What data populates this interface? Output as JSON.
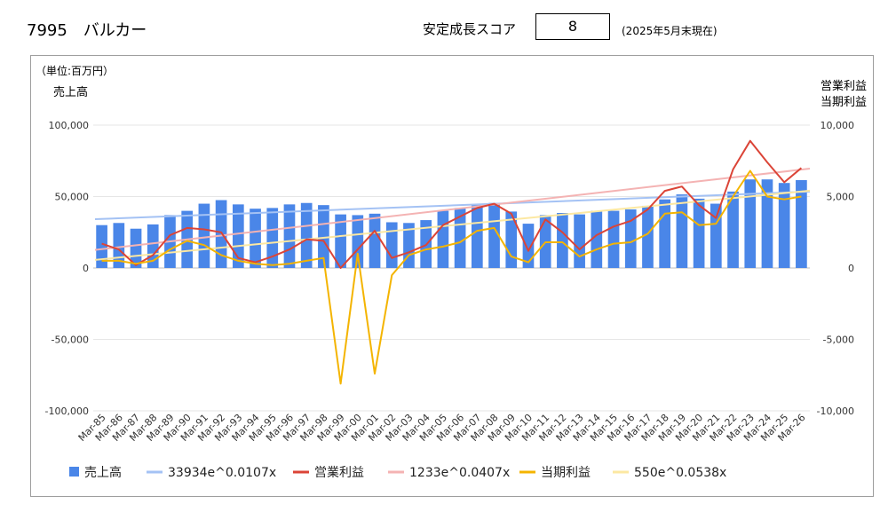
{
  "header": {
    "title": "7995　バルカー",
    "score_label": "安定成長スコア",
    "score_value": "8",
    "note": "(2025年5月末現在)"
  },
  "chart_data": {
    "type": "bar",
    "unit_label": "（単位:百万円）",
    "left_axis_label": "売上高",
    "right_axis_label_1": "営業利益",
    "right_axis_label_2": "当期利益",
    "categories": [
      "Mar-85",
      "Mar-86",
      "Mar-87",
      "Mar-88",
      "Mar-89",
      "Mar-90",
      "Mar-91",
      "Mar-92",
      "Mar-93",
      "Mar-94",
      "Mar-95",
      "Mar-96",
      "Mar-97",
      "Mar-98",
      "Mar-99",
      "Mar-00",
      "Mar-01",
      "Mar-02",
      "Mar-03",
      "Mar-04",
      "Mar-05",
      "Mar-06",
      "Mar-07",
      "Mar-08",
      "Mar-09",
      "Mar-10",
      "Mar-11",
      "Mar-12",
      "Mar-13",
      "Mar-14",
      "Mar-15",
      "Mar-16",
      "Mar-17",
      "Mar-18",
      "Mar-19",
      "Mar-20",
      "Mar-21",
      "Mar-22",
      "Mar-23",
      "Mar-24",
      "Mar-25",
      "Mar-26"
    ],
    "y_left": {
      "min": -100000,
      "max": 100000,
      "ticks": [
        100000,
        50000,
        0,
        -50000,
        -100000
      ],
      "tick_labels": [
        "100,000",
        "50,000",
        "0",
        "-50,000",
        "-100,000"
      ]
    },
    "y_right": {
      "min": -10000,
      "max": 10000,
      "ticks": [
        10000,
        5000,
        0,
        -5000,
        -10000
      ],
      "tick_labels": [
        "10,000",
        "5,000",
        "0",
        "-5,000",
        "-10,000"
      ]
    },
    "series": [
      {
        "name": "売上高",
        "kind": "bar",
        "axis": "left",
        "color": "#4a86e8",
        "values": [
          30000,
          31500,
          27500,
          30500,
          37000,
          40000,
          45000,
          47500,
          44500,
          41500,
          42000,
          44500,
          45500,
          44000,
          37500,
          37000,
          38000,
          32000,
          31500,
          33500,
          40000,
          42000,
          44500,
          45500,
          39500,
          31000,
          37000,
          38500,
          37500,
          40000,
          40000,
          41000,
          43500,
          48000,
          51500,
          48500,
          45000,
          53500,
          62000,
          62000,
          59500,
          61500
        ]
      },
      {
        "name": "33934e^0.0107x",
        "kind": "trend",
        "axis": "left",
        "color": "#a4c2f4",
        "trend": {
          "a": 33934,
          "b": 0.0107
        }
      },
      {
        "name": "営業利益",
        "kind": "line",
        "axis": "right",
        "color": "#db4437",
        "values": [
          1700,
          1300,
          200,
          900,
          2300,
          2800,
          2700,
          2500,
          700,
          400,
          800,
          1300,
          2000,
          1900,
          0,
          1300,
          2600,
          700,
          1100,
          1600,
          3000,
          3600,
          4200,
          4500,
          3800,
          1200,
          3400,
          2500,
          1300,
          2300,
          2900,
          3300,
          4100,
          5400,
          5700,
          4400,
          3500,
          6900,
          8900,
          7400,
          6000,
          7000
        ]
      },
      {
        "name": "1233e^0.0407x",
        "kind": "trend",
        "axis": "right",
        "color": "#f4b3b3",
        "trend": {
          "a": 1233,
          "b": 0.0407
        }
      },
      {
        "name": "当期利益",
        "kind": "line",
        "axis": "right",
        "color": "#f4b400",
        "values": [
          500,
          500,
          300,
          500,
          1300,
          1900,
          1600,
          900,
          500,
          300,
          200,
          300,
          500,
          700,
          -8100,
          1000,
          -7400,
          -500,
          900,
          1300,
          1500,
          1800,
          2600,
          2800,
          800,
          400,
          1800,
          1800,
          800,
          1300,
          1700,
          1800,
          2400,
          3800,
          3900,
          3000,
          3100,
          5000,
          6800,
          5000,
          4800,
          5000
        ]
      },
      {
        "name": "550e^0.0538x",
        "kind": "trend",
        "axis": "right",
        "color": "#fce8a2",
        "trend": {
          "a": 550,
          "b": 0.0538
        }
      }
    ],
    "legend_position": "bottom"
  }
}
